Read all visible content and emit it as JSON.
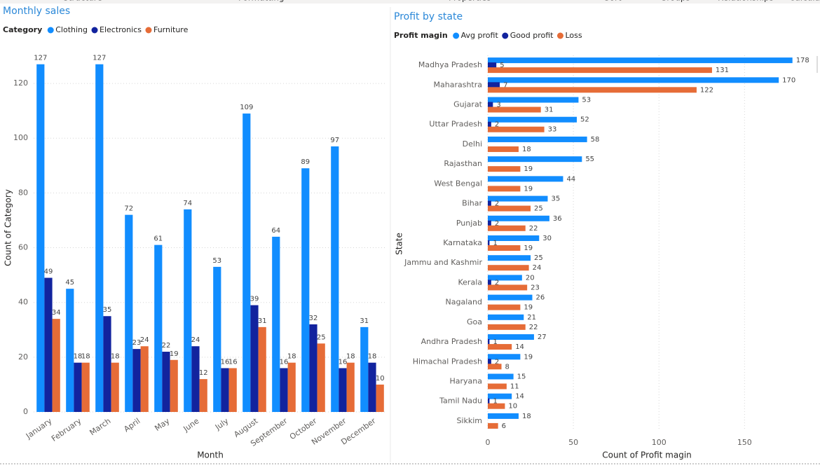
{
  "ribbon": {
    "tabs": [
      "Structure",
      "Formatting",
      "Properties",
      "Sort",
      "Groups",
      "Relationships",
      "Calculations"
    ]
  },
  "chart_data": [
    {
      "type": "bar",
      "orientation": "vertical",
      "title": "Monthly sales",
      "legend_title": "Category",
      "x_label": "Month",
      "y_label": "Count of Category",
      "categories": [
        "January",
        "February",
        "March",
        "April",
        "May",
        "June",
        "July",
        "August",
        "September",
        "October",
        "November",
        "December"
      ],
      "series": [
        {
          "name": "Clothing",
          "color": "#118dff",
          "values": [
            127,
            45,
            127,
            72,
            61,
            74,
            53,
            109,
            64,
            89,
            97,
            31
          ]
        },
        {
          "name": "Electronics",
          "color": "#12239e",
          "values": [
            49,
            18,
            35,
            23,
            22,
            24,
            16,
            39,
            16,
            32,
            16,
            18
          ]
        },
        {
          "name": "Furniture",
          "color": "#e66c37",
          "values": [
            34,
            18,
            18,
            24,
            19,
            12,
            16,
            31,
            18,
            25,
            18,
            10
          ]
        }
      ],
      "ylim": [
        0,
        130
      ],
      "yticks": [
        0,
        20,
        40,
        60,
        80,
        100,
        120
      ],
      "grid": true
    },
    {
      "type": "bar",
      "orientation": "horizontal",
      "title": "Profit by state",
      "legend_title": "Profit magin",
      "x_label": "Count of Profit magin",
      "y_label": "State",
      "categories": [
        "Madhya Pradesh",
        "Maharashtra",
        "Gujarat",
        "Uttar Pradesh",
        "Delhi",
        "Rajasthan",
        "West Bengal",
        "Bihar",
        "Punjab",
        "Karnataka",
        "Jammu and Kashmir",
        "Kerala",
        "Nagaland",
        "Goa",
        "Andhra Pradesh",
        "Himachal Pradesh",
        "Haryana",
        "Tamil Nadu",
        "Sikkim"
      ],
      "series": [
        {
          "name": "Avg profit",
          "color": "#118dff",
          "values": [
            178,
            170,
            53,
            52,
            58,
            55,
            44,
            35,
            36,
            30,
            25,
            20,
            26,
            21,
            27,
            19,
            15,
            14,
            18
          ]
        },
        {
          "name": "Good profit",
          "color": "#12239e",
          "values": [
            5,
            7,
            3,
            2,
            null,
            null,
            null,
            2,
            2,
            1,
            null,
            2,
            null,
            null,
            1,
            2,
            null,
            1,
            null
          ]
        },
        {
          "name": "Loss",
          "color": "#e66c37",
          "values": [
            131,
            122,
            31,
            33,
            18,
            19,
            19,
            25,
            22,
            19,
            24,
            23,
            19,
            22,
            14,
            8,
            11,
            10,
            6
          ]
        }
      ],
      "xlim": [
        0,
        190
      ],
      "xticks": [
        0,
        50,
        100,
        150
      ],
      "grid": true
    }
  ]
}
